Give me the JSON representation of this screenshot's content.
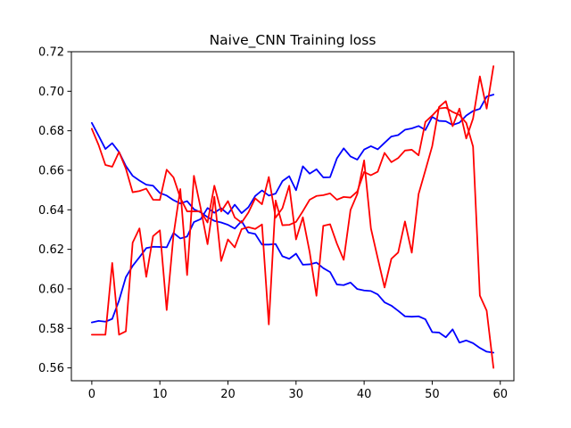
{
  "chart_data": {
    "type": "line",
    "title": "Naive_CNN Training loss",
    "xlabel": "",
    "ylabel": "",
    "xlim": [
      -3,
      62
    ],
    "ylim": [
      0.5535,
      0.72
    ],
    "x_ticks": [
      0,
      10,
      20,
      30,
      40,
      50,
      60
    ],
    "y_ticks": [
      0.56,
      0.58,
      0.6,
      0.62,
      0.64,
      0.66,
      0.68,
      0.7,
      0.72
    ],
    "grid": false,
    "legend": "none",
    "x": [
      0,
      1,
      2,
      3,
      4,
      5,
      6,
      7,
      8,
      9,
      10,
      11,
      12,
      13,
      14,
      15,
      16,
      17,
      18,
      19,
      20,
      21,
      22,
      23,
      24,
      25,
      26,
      27,
      28,
      29,
      30,
      31,
      32,
      33,
      34,
      35,
      36,
      37,
      38,
      39,
      40,
      41,
      42,
      43,
      44,
      45,
      46,
      47,
      48,
      49,
      50,
      51,
      52,
      53,
      54,
      55,
      56,
      57,
      58,
      59
    ],
    "series": [
      {
        "color": "#0000ff",
        "values": [
          0.684,
          0.6775,
          0.6708,
          0.6737,
          0.6692,
          0.6622,
          0.6572,
          0.6548,
          0.6527,
          0.6522,
          0.6485,
          0.6472,
          0.6449,
          0.6432,
          0.6444,
          0.6403,
          0.6387,
          0.6363,
          0.6344,
          0.6336,
          0.6324,
          0.6305,
          0.6343,
          0.6285,
          0.6278,
          0.6224,
          0.6224,
          0.6227,
          0.6165,
          0.6152,
          0.6178,
          0.6122,
          0.6124,
          0.6133,
          0.6105,
          0.6085,
          0.6022,
          0.6019,
          0.6032,
          0.5999,
          0.5992,
          0.5989,
          0.5972,
          0.5932,
          0.5915,
          0.5889,
          0.5861,
          0.5859,
          0.5861,
          0.5846,
          0.5781,
          0.5779,
          0.5755,
          0.5795,
          0.5728,
          0.5739,
          0.5725,
          0.5701,
          0.5682,
          0.5677
        ]
      },
      {
        "color": "#0000ff",
        "values": [
          0.583,
          0.5838,
          0.5834,
          0.5848,
          0.5941,
          0.6059,
          0.6116,
          0.616,
          0.6206,
          0.6213,
          0.6212,
          0.621,
          0.6283,
          0.6255,
          0.6265,
          0.6338,
          0.6353,
          0.6409,
          0.6385,
          0.6408,
          0.6379,
          0.6426,
          0.6383,
          0.6413,
          0.647,
          0.6498,
          0.6472,
          0.6482,
          0.6545,
          0.657,
          0.6499,
          0.662,
          0.6583,
          0.6605,
          0.6564,
          0.6565,
          0.666,
          0.6711,
          0.667,
          0.6654,
          0.6705,
          0.6722,
          0.6706,
          0.6739,
          0.6771,
          0.6778,
          0.6805,
          0.6812,
          0.6824,
          0.6804,
          0.687,
          0.685,
          0.6848,
          0.6829,
          0.6841,
          0.6877,
          0.69,
          0.6911,
          0.6973,
          0.6983
        ]
      },
      {
        "color": "#ff0000",
        "values": [
          0.681,
          0.6728,
          0.6627,
          0.6618,
          0.6693,
          0.6609,
          0.6489,
          0.6495,
          0.6507,
          0.6451,
          0.645,
          0.6603,
          0.6564,
          0.6461,
          0.6392,
          0.6392,
          0.6392,
          0.6336,
          0.6522,
          0.6392,
          0.6444,
          0.6361,
          0.6335,
          0.6386,
          0.6458,
          0.6428,
          0.6566,
          0.636,
          0.6408,
          0.6522,
          0.625,
          0.6362,
          0.6186,
          0.5965,
          0.6319,
          0.6327,
          0.6229,
          0.6147,
          0.6399,
          0.648,
          0.665,
          0.6306,
          0.6155,
          0.6007,
          0.6152,
          0.6184,
          0.6341,
          0.6183,
          0.648,
          0.66,
          0.6722,
          0.692,
          0.695,
          0.6823,
          0.6912,
          0.6761,
          0.6862,
          0.7075,
          0.6912,
          0.7127
        ]
      },
      {
        "color": "#ff0000",
        "values": [
          0.5768,
          0.5768,
          0.5768,
          0.6131,
          0.5768,
          0.5785,
          0.6234,
          0.6306,
          0.6061,
          0.6267,
          0.6296,
          0.5893,
          0.6272,
          0.6505,
          0.607,
          0.6572,
          0.6407,
          0.6226,
          0.6466,
          0.6141,
          0.625,
          0.621,
          0.6302,
          0.6312,
          0.6303,
          0.6326,
          0.582,
          0.6447,
          0.6322,
          0.6324,
          0.6339,
          0.6393,
          0.6451,
          0.647,
          0.6474,
          0.6483,
          0.6451,
          0.6465,
          0.6462,
          0.6493,
          0.6591,
          0.6575,
          0.6593,
          0.6688,
          0.6641,
          0.6662,
          0.67,
          0.6704,
          0.6676,
          0.6845,
          0.6877,
          0.6913,
          0.6917,
          0.6895,
          0.688,
          0.684,
          0.672,
          0.5966,
          0.589,
          0.56
        ]
      }
    ]
  }
}
